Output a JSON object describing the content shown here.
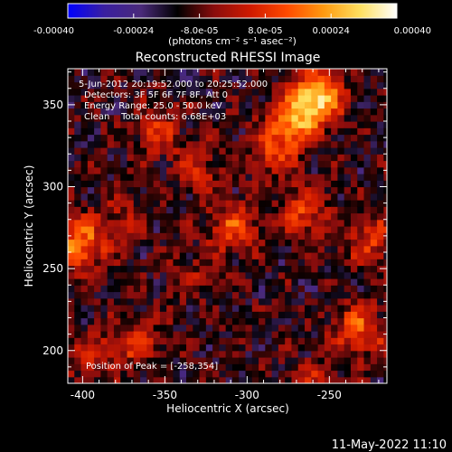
{
  "colorbar": {
    "tick_labels": [
      "-0.00040",
      "-0.00024",
      "-8.0e-05",
      "8.0e-05",
      "0.00024",
      "0.00040"
    ],
    "range": [
      -0.0004,
      0.0004
    ],
    "unit_label": "(photons cm⁻² s⁻¹ asec⁻²)",
    "colors": [
      "#0000ff",
      "#3a1fa0",
      "#4a2a7a",
      "#000000",
      "#8a0d0d",
      "#d01a00",
      "#ff4a00",
      "#ff9a10",
      "#ffe060",
      "#ffffff"
    ]
  },
  "chart_data": {
    "type": "heatmap",
    "title": "Reconstructed RHESSI Image",
    "xlabel": "Heliocentric X (arcsec)",
    "ylabel": "Heliocentric Y (arcsec)",
    "xlim": [
      -409,
      -215
    ],
    "ylim": [
      180,
      372
    ],
    "x_ticks": [
      -400,
      -350,
      -300,
      -250
    ],
    "y_ticks": [
      200,
      250,
      300,
      350
    ],
    "colormap_range": [
      -0.0004,
      0.0004
    ],
    "annotations": [
      "5-Jun-2012 20:19:52.000 to 20:25:52.000",
      "Detectors: 3F 5F 6F 7F 8F, Att 0",
      "Energy Range: 25.0 - 50.0 keV",
      "Clean    Total counts: 6.68E+03"
    ],
    "peak_label": "Position of Peak = [-258,354]",
    "sources": [
      {
        "x": -258,
        "y": 354,
        "amp": 0.0004
      },
      {
        "x": -272,
        "y": 338,
        "amp": 0.00026
      },
      {
        "x": -285,
        "y": 322,
        "amp": 0.00016
      },
      {
        "x": -402,
        "y": 265,
        "amp": 0.0003
      },
      {
        "x": -355,
        "y": 335,
        "amp": 0.00016
      },
      {
        "x": -330,
        "y": 312,
        "amp": 0.00014
      },
      {
        "x": -308,
        "y": 275,
        "amp": 0.00022
      },
      {
        "x": -265,
        "y": 285,
        "amp": 0.0002
      },
      {
        "x": -225,
        "y": 268,
        "amp": 0.00018
      },
      {
        "x": -232,
        "y": 213,
        "amp": 0.00024
      },
      {
        "x": -395,
        "y": 198,
        "amp": 0.00012
      },
      {
        "x": -368,
        "y": 205,
        "amp": 0.00016
      },
      {
        "x": -258,
        "y": 180,
        "amp": 0.00012
      },
      {
        "x": -375,
        "y": 282,
        "amp": 0.0001
      },
      {
        "x": -335,
        "y": 245,
        "amp": 0.0001
      }
    ],
    "background_level": -0.00012
  },
  "footer": {
    "timestamp": "11-May-2022 11:10"
  }
}
